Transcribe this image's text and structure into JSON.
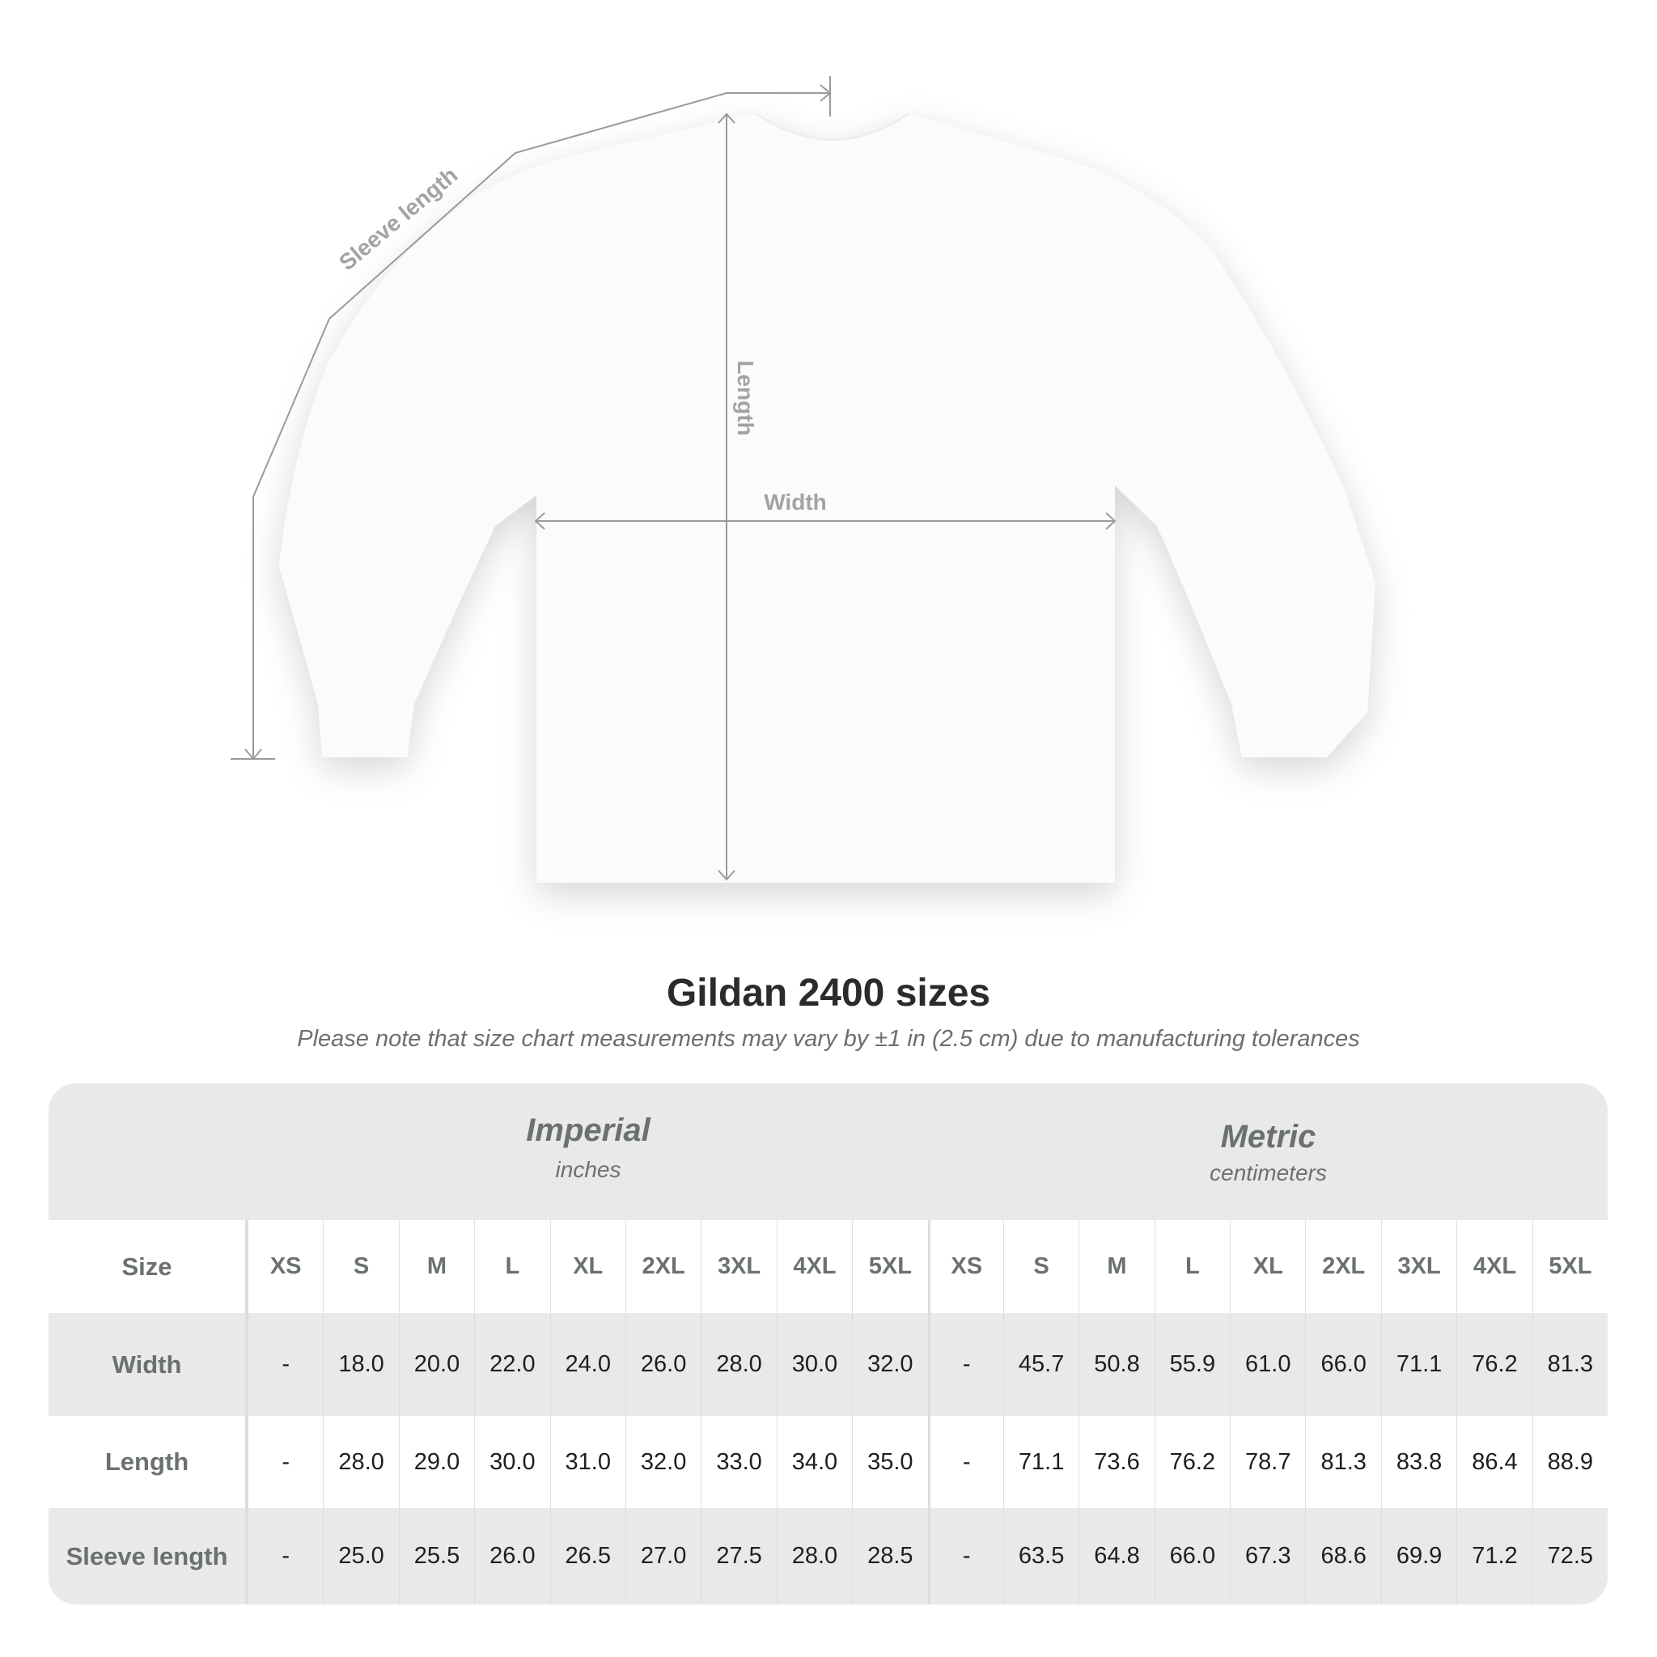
{
  "diagram": {
    "labels": {
      "sleeve": "Sleeve length",
      "length": "Length",
      "width": "Width"
    },
    "line_color": "#999999"
  },
  "title": "Gildan 2400 sizes",
  "subtitle": "Please note that size chart measurements may vary by ±1 in (2.5 cm) due to manufacturing tolerances",
  "table": {
    "imperial": {
      "name": "Imperial",
      "unit": "inches"
    },
    "metric": {
      "name": "Metric",
      "unit": "centimeters"
    },
    "size_label": "Size",
    "sizes": [
      "XS",
      "S",
      "M",
      "L",
      "XL",
      "2XL",
      "3XL",
      "4XL",
      "5XL"
    ],
    "rows": [
      {
        "label": "Width",
        "imperial": [
          "-",
          "18.0",
          "20.0",
          "22.0",
          "24.0",
          "26.0",
          "28.0",
          "30.0",
          "32.0"
        ],
        "metric": [
          "-",
          "45.7",
          "50.8",
          "55.9",
          "61.0",
          "66.0",
          "71.1",
          "76.2",
          "81.3"
        ]
      },
      {
        "label": "Length",
        "imperial": [
          "-",
          "28.0",
          "29.0",
          "30.0",
          "31.0",
          "32.0",
          "33.0",
          "34.0",
          "35.0"
        ],
        "metric": [
          "-",
          "71.1",
          "73.6",
          "76.2",
          "78.7",
          "81.3",
          "83.8",
          "86.4",
          "88.9"
        ]
      },
      {
        "label": "Sleeve length",
        "imperial": [
          "-",
          "25.0",
          "25.5",
          "26.0",
          "26.5",
          "27.0",
          "27.5",
          "28.0",
          "28.5"
        ],
        "metric": [
          "-",
          "63.5",
          "64.8",
          "66.0",
          "67.3",
          "68.6",
          "69.9",
          "71.2",
          "72.5"
        ]
      }
    ],
    "band_color": "#e9e9e9"
  }
}
